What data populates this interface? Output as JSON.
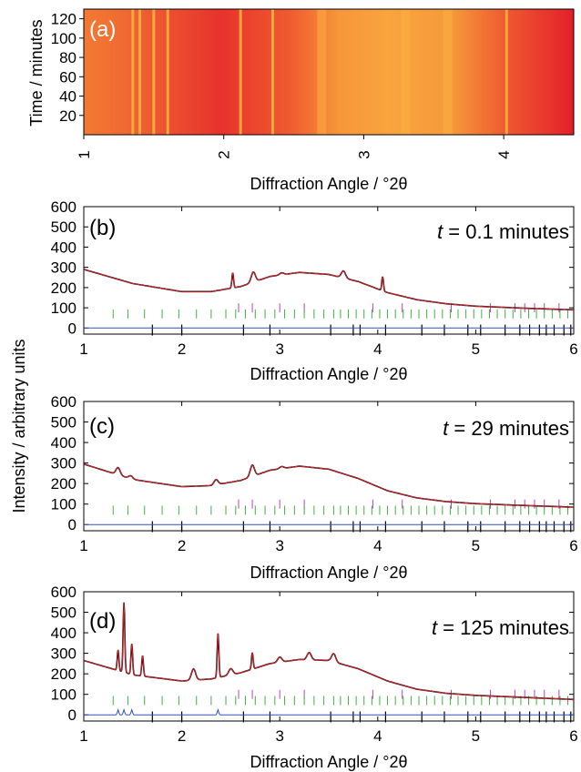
{
  "chart_data": [
    {
      "type": "heatmap",
      "panel_label": "(a)",
      "xlabel": "Diffraction Angle / °2θ",
      "ylabel": "Time / minutes",
      "xlim": [
        1,
        4.5
      ],
      "ylim": [
        0,
        130
      ],
      "x_ticks": [
        "1",
        "2",
        "3",
        "4"
      ],
      "y_ticks": [
        "20",
        "40",
        "60",
        "80",
        "100",
        "120"
      ],
      "colors": {
        "low": "#e8212c",
        "high": "#fbb040"
      },
      "bright_band_centers_2theta": [
        1.35,
        1.4,
        1.5,
        1.6,
        2.12,
        2.35,
        2.7,
        3.3,
        3.6,
        4.02
      ],
      "grid": false
    },
    {
      "type": "line",
      "panel_label": "(b)",
      "annotation": {
        "var": "t",
        "text": " = 0.1 minutes"
      },
      "xlabel": "Diffraction Angle / °2θ",
      "xlim": [
        1,
        6
      ],
      "ylim": [
        -30,
        600
      ],
      "x_ticks": [
        "1",
        "2",
        "3",
        "4",
        "5",
        "6"
      ],
      "y_ticks": [
        "0",
        "100",
        "200",
        "300",
        "400",
        "500",
        "600"
      ],
      "background": {
        "x": [
          1,
          1.5,
          2,
          2.3,
          2.6,
          2.9,
          3.2,
          3.5,
          3.8,
          4.1,
          4.4,
          4.7,
          5,
          5.5,
          6
        ],
        "y": [
          290,
          220,
          180,
          180,
          205,
          255,
          275,
          265,
          230,
          175,
          140,
          120,
          108,
          98,
          90
        ]
      },
      "peaks": [
        {
          "x": 2.52,
          "h": 75
        },
        {
          "x": 2.73,
          "h": 50
        },
        {
          "x": 3.02,
          "h": 10
        },
        {
          "x": 3.65,
          "h": 35
        },
        {
          "x": 4.05,
          "h": 70
        }
      ],
      "difference_spikes_x": [],
      "series": [
        {
          "name": "",
          "color": "#000000"
        },
        {
          "name": "",
          "color": "#e8212c"
        },
        {
          "name": "",
          "color": "#3050c0"
        }
      ],
      "ticks_magenta_x": [
        2.58,
        2.72,
        3.0,
        3.25,
        3.95,
        4.25,
        4.75,
        5.15,
        5.4,
        5.5,
        5.6,
        5.7,
        5.85
      ],
      "ticks_green_x": [
        1.3,
        1.45,
        1.62,
        1.8,
        1.97,
        2.15,
        2.3,
        2.45,
        2.55,
        2.65,
        2.75,
        2.85,
        2.95,
        3.05,
        3.15,
        3.25,
        3.35,
        3.45,
        3.55,
        3.62,
        3.7,
        3.78,
        3.86,
        3.94,
        4.02,
        4.1,
        4.18,
        4.26,
        4.34,
        4.42,
        4.5,
        4.58,
        4.66,
        4.74,
        4.82,
        4.9,
        4.98,
        5.06,
        5.14,
        5.22,
        5.3,
        5.38,
        5.46,
        5.54,
        5.62,
        5.7,
        5.78,
        5.86,
        5.94
      ],
      "ticks_black_x": [
        1.7,
        2.0,
        2.63,
        2.9,
        3.52,
        3.75,
        3.82,
        4.08,
        4.45,
        4.68,
        4.92,
        5.05,
        5.3,
        5.45,
        5.55,
        5.65,
        5.72,
        5.8,
        5.9,
        5.97
      ]
    },
    {
      "type": "line",
      "panel_label": "(c)",
      "annotation": {
        "var": "t",
        "text": " = 29 minutes"
      },
      "xlabel": "Diffraction Angle / °2θ",
      "xlim": [
        1,
        6
      ],
      "ylim": [
        -30,
        600
      ],
      "x_ticks": [
        "1",
        "2",
        "3",
        "4",
        "5",
        "6"
      ],
      "y_ticks": [
        "0",
        "100",
        "200",
        "300",
        "400",
        "500",
        "600"
      ],
      "background": {
        "x": [
          1,
          1.5,
          2,
          2.3,
          2.6,
          2.9,
          3.2,
          3.5,
          3.8,
          4.1,
          4.4,
          4.7,
          5,
          5.5,
          6
        ],
        "y": [
          295,
          220,
          185,
          190,
          215,
          265,
          285,
          270,
          225,
          165,
          130,
          112,
          102,
          93,
          85
        ]
      },
      "peaks": [
        {
          "x": 1.35,
          "h": 35
        },
        {
          "x": 1.48,
          "h": 15
        },
        {
          "x": 2.35,
          "h": 25
        },
        {
          "x": 2.72,
          "h": 55
        },
        {
          "x": 3.02,
          "h": 10
        }
      ],
      "difference_spikes_x": [],
      "series": [
        {
          "name": "",
          "color": "#000000"
        },
        {
          "name": "",
          "color": "#e8212c"
        },
        {
          "name": "",
          "color": "#3050c0"
        }
      ],
      "ticks_magenta_x": [
        2.58,
        2.72,
        3.0,
        3.25,
        3.95,
        4.25,
        4.75,
        5.15,
        5.4,
        5.5,
        5.6,
        5.7,
        5.85
      ],
      "ticks_green_x": [
        1.3,
        1.45,
        1.62,
        1.8,
        1.97,
        2.15,
        2.3,
        2.45,
        2.55,
        2.65,
        2.75,
        2.85,
        2.95,
        3.05,
        3.15,
        3.25,
        3.35,
        3.45,
        3.55,
        3.62,
        3.7,
        3.78,
        3.86,
        3.94,
        4.02,
        4.1,
        4.18,
        4.26,
        4.34,
        4.42,
        4.5,
        4.58,
        4.66,
        4.74,
        4.82,
        4.9,
        4.98,
        5.06,
        5.14,
        5.22,
        5.3,
        5.38,
        5.46,
        5.54,
        5.62,
        5.7,
        5.78,
        5.86,
        5.94
      ],
      "ticks_black_x": [
        1.7,
        2.0,
        2.63,
        2.9,
        3.52,
        3.75,
        3.82,
        4.08,
        4.45,
        4.68,
        4.92,
        5.05,
        5.3,
        5.45,
        5.55,
        5.65,
        5.72,
        5.8,
        5.9,
        5.97
      ]
    },
    {
      "type": "line",
      "panel_label": "(d)",
      "annotation": {
        "var": "t",
        "text": " = 125 minutes"
      },
      "xlabel": "Diffraction Angle / °2θ",
      "xlim": [
        1,
        6
      ],
      "ylim": [
        -30,
        600
      ],
      "x_ticks": [
        "1",
        "2",
        "3",
        "4",
        "5",
        "6"
      ],
      "y_ticks": [
        "0",
        "100",
        "200",
        "300",
        "400",
        "500",
        "600"
      ],
      "background": {
        "x": [
          1,
          1.5,
          2,
          2.3,
          2.6,
          2.9,
          3.2,
          3.5,
          3.8,
          4.1,
          4.4,
          4.7,
          5,
          5.5,
          6
        ],
        "y": [
          265,
          195,
          165,
          175,
          205,
          250,
          270,
          265,
          225,
          165,
          125,
          105,
          95,
          85,
          75
        ]
      },
      "peaks": [
        {
          "x": 1.35,
          "h": 100
        },
        {
          "x": 1.41,
          "h": 340
        },
        {
          "x": 1.49,
          "h": 150
        },
        {
          "x": 1.6,
          "h": 100
        },
        {
          "x": 2.12,
          "h": 55
        },
        {
          "x": 2.37,
          "h": 215
        },
        {
          "x": 2.5,
          "h": 30
        },
        {
          "x": 2.72,
          "h": 80
        },
        {
          "x": 3.0,
          "h": 25
        },
        {
          "x": 3.3,
          "h": 35
        },
        {
          "x": 3.55,
          "h": 40
        }
      ],
      "difference_spikes_x": [
        1.35,
        1.41,
        1.49,
        2.37
      ],
      "series": [
        {
          "name": "",
          "color": "#000000"
        },
        {
          "name": "",
          "color": "#e8212c"
        },
        {
          "name": "",
          "color": "#3050c0"
        }
      ],
      "ticks_magenta_x": [
        2.58,
        2.72,
        3.0,
        3.25,
        3.95,
        4.25,
        4.75,
        5.15,
        5.4,
        5.5,
        5.6,
        5.7,
        5.85
      ],
      "ticks_green_x": [
        1.3,
        1.45,
        1.62,
        1.8,
        1.97,
        2.15,
        2.3,
        2.45,
        2.55,
        2.65,
        2.75,
        2.85,
        2.95,
        3.05,
        3.15,
        3.25,
        3.35,
        3.45,
        3.55,
        3.62,
        3.7,
        3.78,
        3.86,
        3.94,
        4.02,
        4.1,
        4.18,
        4.26,
        4.34,
        4.42,
        4.5,
        4.58,
        4.66,
        4.74,
        4.82,
        4.9,
        4.98,
        5.06,
        5.14,
        5.22,
        5.3,
        5.38,
        5.46,
        5.54,
        5.62,
        5.7,
        5.78,
        5.86,
        5.94
      ],
      "ticks_black_x": [
        1.7,
        2.0,
        2.63,
        2.9,
        3.52,
        3.75,
        3.82,
        4.08,
        4.45,
        4.68,
        4.92,
        5.05,
        5.3,
        5.45,
        5.55,
        5.65,
        5.72,
        5.8,
        5.9,
        5.97
      ]
    }
  ],
  "shared_ylabel": "Intensity / arbitrary units"
}
